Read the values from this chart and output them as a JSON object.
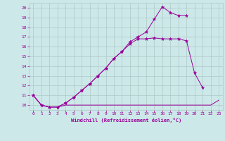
{
  "xlabel": "Windchill (Refroidissement éolien,°C)",
  "bg_color": "#cce8e8",
  "line_color": "#990099",
  "grid_color": "#b0c8c8",
  "xlim": [
    -0.5,
    23.5
  ],
  "ylim": [
    9.5,
    20.5
  ],
  "yticks": [
    10,
    11,
    12,
    13,
    14,
    15,
    16,
    17,
    18,
    19,
    20
  ],
  "xticks": [
    0,
    1,
    2,
    3,
    4,
    5,
    6,
    7,
    8,
    9,
    10,
    11,
    12,
    13,
    14,
    15,
    16,
    17,
    18,
    19,
    20,
    21,
    22,
    23
  ],
  "series": [
    {
      "x": [
        0,
        1,
        2,
        3,
        4,
        5,
        6,
        7,
        8,
        9,
        10,
        11,
        12,
        13,
        14,
        15,
        16,
        17,
        18,
        19,
        20,
        21,
        22,
        23
      ],
      "y": [
        11.0,
        10.0,
        9.8,
        9.8,
        10.0,
        10.0,
        10.0,
        10.0,
        10.0,
        10.0,
        10.0,
        10.0,
        10.0,
        10.0,
        10.0,
        10.0,
        10.0,
        10.0,
        10.0,
        10.0,
        10.0,
        10.0,
        10.0,
        10.5
      ]
    },
    {
      "x": [
        0,
        1,
        2,
        3,
        4,
        5,
        6,
        7,
        8,
        9,
        10,
        11,
        12,
        13,
        14,
        15,
        16,
        17,
        18,
        19,
        20,
        21
      ],
      "y": [
        11.0,
        10.0,
        9.8,
        9.8,
        10.2,
        10.8,
        11.5,
        12.2,
        13.0,
        13.8,
        14.8,
        15.5,
        16.3,
        16.8,
        16.8,
        16.9,
        16.8,
        16.8,
        16.8,
        16.6,
        13.3,
        11.8
      ]
    },
    {
      "x": [
        0,
        1,
        2,
        3,
        4,
        5,
        6,
        7,
        8,
        9,
        10,
        11,
        12,
        13,
        14,
        15,
        16,
        17,
        18,
        19
      ],
      "y": [
        11.0,
        10.0,
        9.8,
        9.8,
        10.2,
        10.8,
        11.5,
        12.2,
        13.0,
        13.8,
        14.8,
        15.5,
        16.5,
        17.0,
        17.5,
        18.8,
        20.1,
        19.5,
        19.2,
        19.2
      ]
    }
  ]
}
